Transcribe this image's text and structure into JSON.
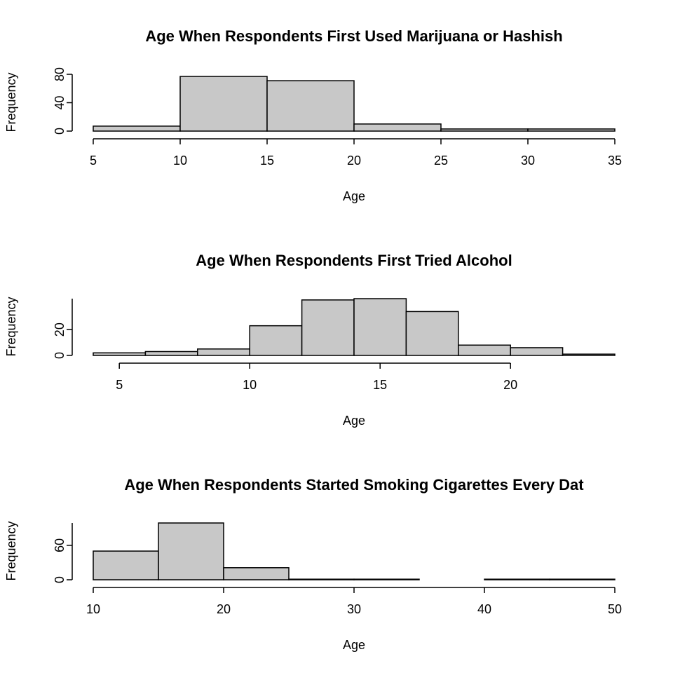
{
  "chart_data": [
    {
      "type": "histogram",
      "title": "Age When Respondents First Used Marijuana or Hashish",
      "xlabel": "Age",
      "ylabel": "Frequency",
      "bins": [
        5,
        10,
        15,
        20,
        25,
        30,
        35
      ],
      "values": [
        7,
        77,
        71,
        10,
        3,
        3
      ],
      "color": "#c8c8c8",
      "xlim": [
        5,
        35
      ],
      "xticks": [
        5,
        10,
        15,
        20,
        25,
        30,
        35
      ],
      "ylim": [
        0,
        80
      ],
      "yticks": [
        0,
        40,
        80
      ]
    },
    {
      "type": "histogram",
      "title": "Age When Respondents First Tried Alcohol",
      "xlabel": "Age",
      "ylabel": "Frequency",
      "bins": [
        4,
        6,
        8,
        10,
        12,
        14,
        16,
        18,
        20,
        22,
        24
      ],
      "values": [
        2,
        3,
        5,
        23,
        43,
        44,
        34,
        8,
        6,
        1
      ],
      "color": "#c8c8c8",
      "xlim": [
        4,
        24
      ],
      "xticks": [
        5,
        10,
        15,
        20
      ],
      "ylim": [
        0,
        44
      ],
      "yticks": [
        0,
        20
      ]
    },
    {
      "type": "histogram",
      "title": "Age When Respondents Started Smoking Cigarettes Every Dat",
      "xlabel": "Age",
      "ylabel": "Frequency",
      "bins": [
        10,
        15,
        20,
        25,
        30,
        35,
        40,
        45,
        50
      ],
      "values": [
        50,
        99,
        21,
        1,
        1,
        0,
        1,
        1
      ],
      "color": "#c8c8c8",
      "xlim": [
        10,
        50
      ],
      "xticks": [
        10,
        20,
        30,
        40,
        50
      ],
      "ylim": [
        0,
        99
      ],
      "yticks": [
        0,
        60
      ]
    }
  ]
}
